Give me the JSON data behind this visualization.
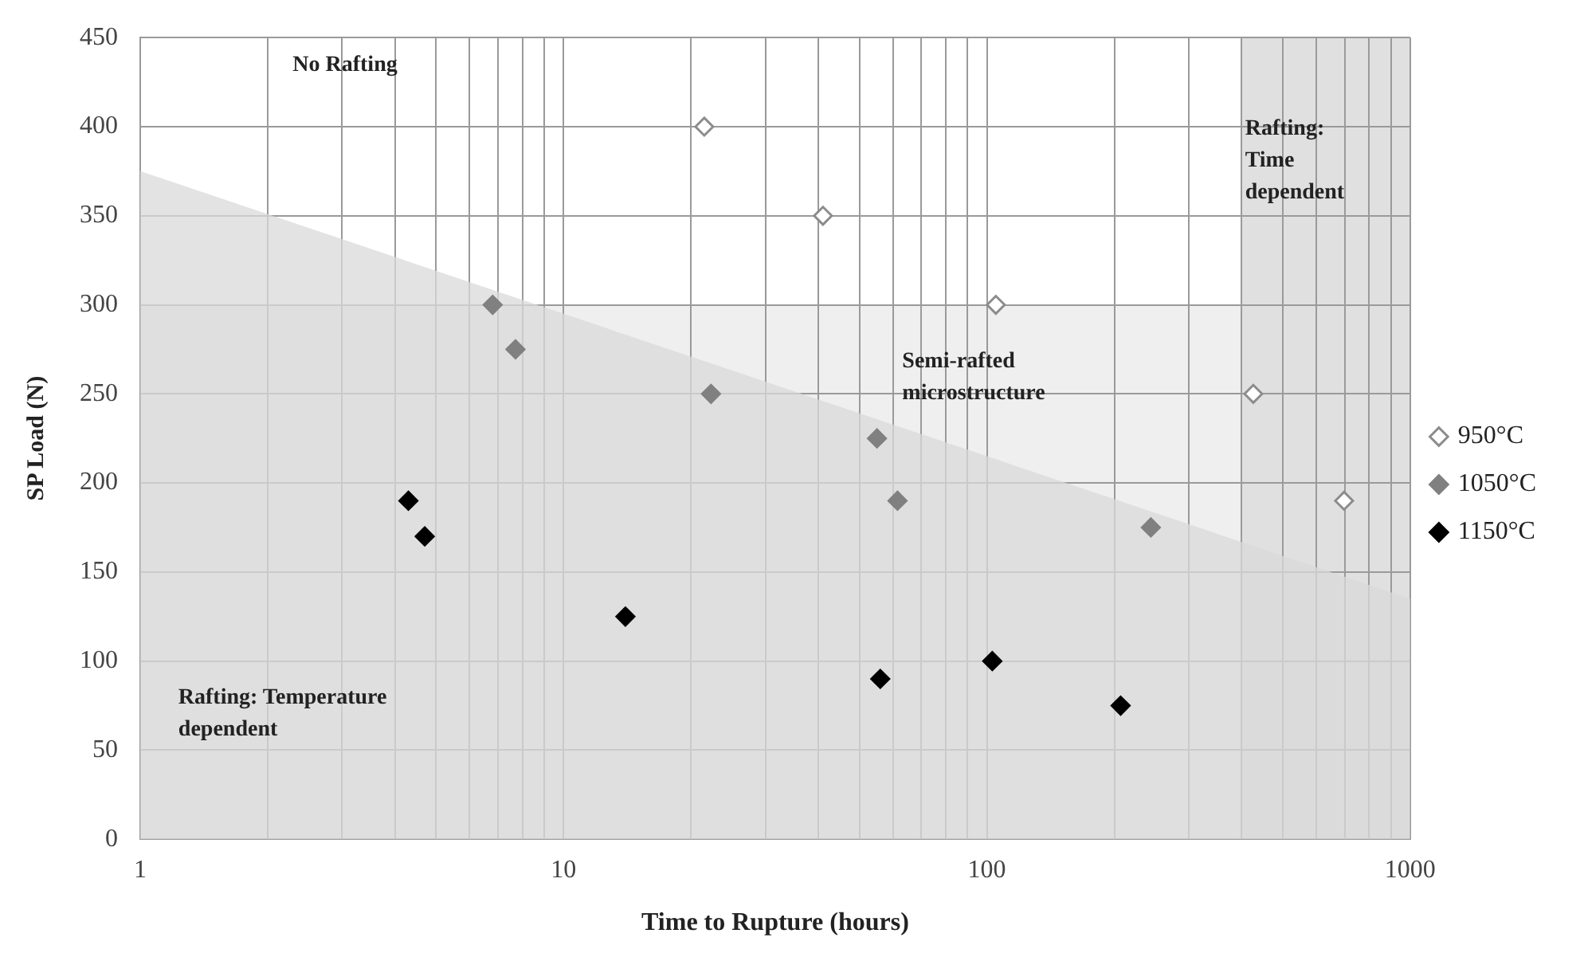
{
  "chart_data": {
    "type": "scatter",
    "xlabel": "Time to Rupture (hours)",
    "ylabel": "SP Load (N)",
    "log": "x",
    "xlim": [
      1,
      1000
    ],
    "xticks": [
      1,
      {
        "value": 2,
        "label": null
      },
      {
        "value": 3,
        "label": null
      },
      {
        "value": 4,
        "label": null
      },
      {
        "value": 5,
        "label": null
      },
      {
        "value": 6,
        "label": null
      },
      {
        "value": 7,
        "label": null
      },
      {
        "value": 8,
        "label": null
      },
      {
        "value": 9,
        "label": null
      },
      10,
      {
        "value": 20,
        "label": null
      },
      {
        "value": 30,
        "label": null
      },
      {
        "value": 40,
        "label": null
      },
      {
        "value": 50,
        "label": null
      },
      {
        "value": 60,
        "label": null
      },
      {
        "value": 70,
        "label": null
      },
      {
        "value": 80,
        "label": null
      },
      {
        "value": 90,
        "label": null
      },
      100,
      {
        "value": 200,
        "label": null
      },
      {
        "value": 300,
        "label": null
      },
      {
        "value": 400,
        "label": null
      },
      {
        "value": 500,
        "label": null
      },
      {
        "value": 600,
        "label": null
      },
      {
        "value": 700,
        "label": null
      },
      {
        "value": 800,
        "label": null
      },
      {
        "value": 900,
        "label": null
      },
      1000
    ],
    "ylim": [
      0,
      450
    ],
    "yticks": [
      0,
      50,
      100,
      150,
      200,
      250,
      300,
      350,
      400,
      450
    ],
    "grid": true,
    "legend": "right",
    "marker": "diamond",
    "bands": [
      {
        "axis": "y",
        "from": 0,
        "to": 300,
        "color": "#efefef"
      },
      {
        "axis": "x",
        "from": 400,
        "to": 1000,
        "color": "#e0e0e0"
      }
    ],
    "series": [
      {
        "type": "area",
        "marker": "none",
        "color": "#d9d9d9",
        "x": [
          1,
          1000
        ],
        "values": [
          375,
          135
        ]
      },
      {
        "name": "950°C",
        "color": "#ffffff",
        "x": [
          21.5,
          41,
          105,
          426,
          698
        ],
        "values": [
          400,
          350,
          300,
          250,
          190
        ]
      },
      {
        "name": "1050°C",
        "color": "#808080",
        "x": [
          6.8,
          7.7,
          22.3,
          55,
          61.5,
          244
        ],
        "values": [
          300,
          275,
          250,
          225,
          190,
          175
        ]
      },
      {
        "name": "1150°C",
        "color": "#000000",
        "x": [
          4.3,
          4.7,
          14,
          56,
          103,
          207
        ],
        "values": [
          190,
          170,
          125,
          90,
          100,
          75
        ]
      }
    ],
    "annotations": [
      "No Rafting",
      "Rafting:\nTime\ndependent",
      "Semi-rafted\nmicrostructure",
      "Rafting: Temperature\ndependent"
    ]
  }
}
